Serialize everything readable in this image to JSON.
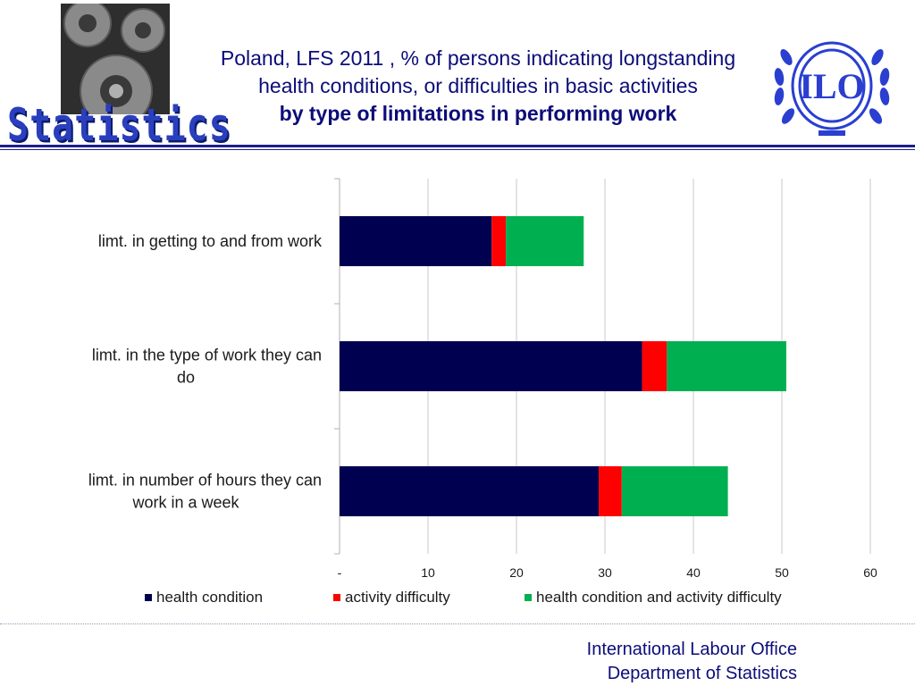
{
  "header": {
    "section_word": "Statistics",
    "title_line1": "Poland, LFS 2011 , % of persons indicating longstanding",
    "title_line2": "health conditions, or difficulties in basic activities",
    "title_line3": "by type of limitations in performing work",
    "logo_text": "ILO"
  },
  "chart_data": {
    "type": "bar",
    "orientation": "horizontal",
    "stacked": true,
    "categories": [
      [
        "limt. in getting to and from work"
      ],
      [
        "limt. in the type of work they can",
        "do"
      ],
      [
        "limt. in number of hours they can",
        "work in a week"
      ]
    ],
    "series": [
      {
        "name": "health condition",
        "color": "#000050",
        "values": [
          17.2,
          34.2,
          29.3
        ]
      },
      {
        "name": "activity difficulty",
        "color": "#ff0000",
        "values": [
          1.6,
          2.8,
          2.6
        ]
      },
      {
        "name": "health condition and activity difficulty",
        "color": "#00b050",
        "values": [
          8.8,
          13.5,
          12.0
        ]
      }
    ],
    "xlim": [
      0,
      60
    ],
    "xticks": [
      "-",
      "10",
      "20",
      "30",
      "40",
      "50",
      "60"
    ],
    "grid": true,
    "legend_position": "bottom"
  },
  "footer": {
    "line1": "International Labour Office",
    "line2": "Department of Statistics"
  }
}
